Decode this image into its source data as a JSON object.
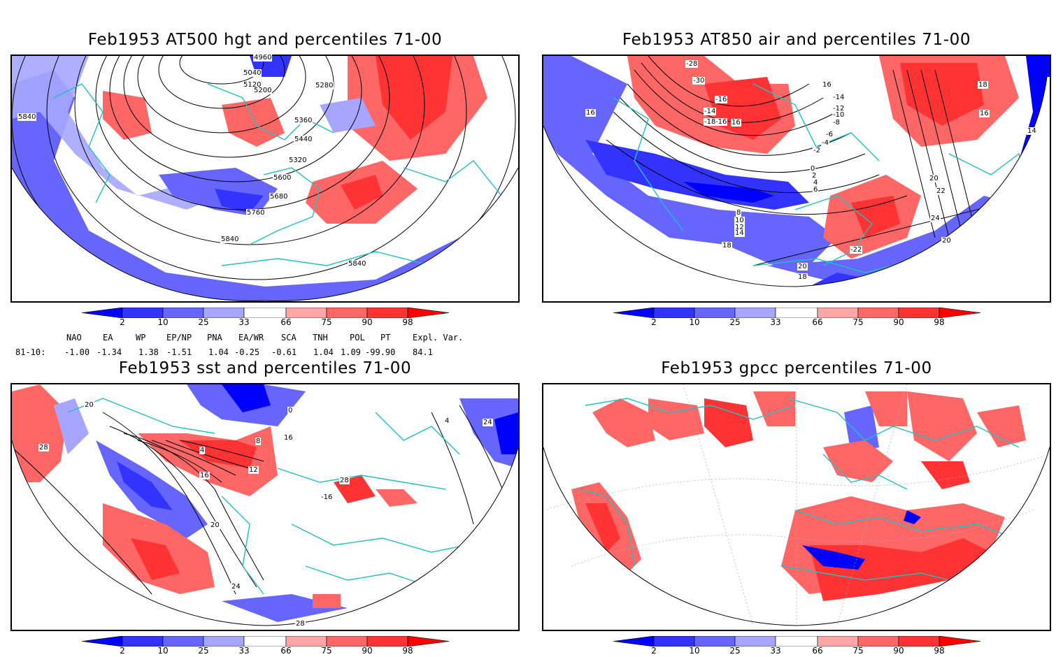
{
  "panels": [
    {
      "id": "p1",
      "title": "Feb1953 AT500 hgt and percentiles 71-00",
      "contour_labels": [
        "4960",
        "5040",
        "5120",
        "5200",
        "5280",
        "5360",
        "5440",
        "5320",
        "5600",
        "5680",
        "5760",
        "5840",
        "5840",
        "5840"
      ]
    },
    {
      "id": "p2",
      "title": "Feb1953 AT850 air and percentiles 71-00",
      "contour_labels": [
        "-28",
        "-30",
        "-16",
        "-14",
        "-16",
        "-18",
        "-14",
        "-12",
        "-10",
        "-8",
        "-6",
        "-4",
        "-2",
        "0",
        "2",
        "4",
        "6",
        "8",
        "10",
        "12",
        "14",
        "16",
        "16",
        "16",
        "18",
        "20",
        "22",
        "24",
        "20",
        "-22",
        "20",
        "18",
        "18",
        "16",
        "14"
      ]
    },
    {
      "id": "p3",
      "title": "Feb1953 sst and percentiles 71-00",
      "contour_labels": [
        "20",
        "28",
        "0",
        "4",
        "8",
        "12",
        "16",
        "-16",
        "20",
        "24",
        "28",
        "24",
        "28",
        "16",
        "4"
      ]
    },
    {
      "id": "p4",
      "title": "Feb1953 gpcc percentiles 71-00",
      "contour_labels": []
    }
  ],
  "colorbar": {
    "labels": [
      "2",
      "10",
      "25",
      "33",
      "66",
      "75",
      "90",
      "98"
    ],
    "colors": {
      "below_2": "#0000ff",
      "2_10": "#3333ff",
      "10_25": "#6666ff",
      "25_33": "#a6a6ff",
      "33_66": "#ffffff",
      "66_75": "#ffa6a6",
      "75_90": "#ff6666",
      "90_98": "#ff3333",
      "above_98": "#ff0000"
    }
  },
  "indices": {
    "headers": [
      "NAO",
      "EA",
      "WP",
      "EP/NP",
      "PNA",
      "EA/WR",
      "SCA",
      "TNH",
      "POL",
      "PT",
      "Expl. Var."
    ],
    "row_label": "81-10:",
    "values": [
      "-1.00",
      "-1.34",
      "1.38",
      "-1.51",
      "1.04",
      "-0.25",
      "-0.61",
      "1.04",
      "1.09",
      "-99.90",
      "84.1"
    ]
  }
}
